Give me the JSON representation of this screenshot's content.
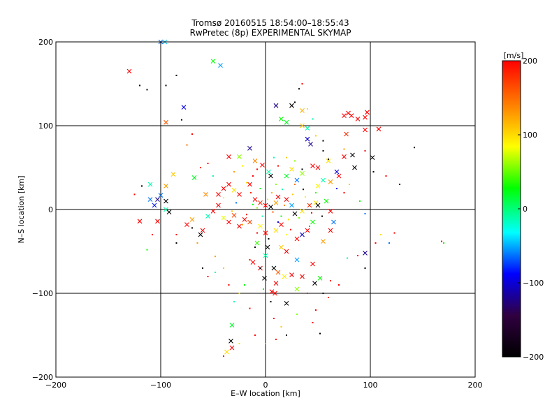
{
  "chart_data": {
    "type": "scatter",
    "title": "Tromsø 20160515 18:54:00–18:55:43",
    "subtitle": "RwPretec (8p) EXPERIMENTAL SKYMAP",
    "xlabel": "E–W location [km]",
    "ylabel": "N–S location [km]",
    "xlim": [
      -200,
      200
    ],
    "ylim": [
      -200,
      200
    ],
    "x_ticks": [
      -200,
      -100,
      0,
      100,
      200
    ],
    "y_ticks": [
      -200,
      -100,
      0,
      100,
      200
    ],
    "grid": true,
    "colorbar": {
      "label": "[m/s]",
      "range": [
        -200,
        200
      ],
      "ticks": [
        200,
        100,
        0,
        -100,
        -200
      ],
      "colors": [
        "#000000",
        "#300040",
        "#0000ff",
        "#00ffff",
        "#00ff00",
        "#ffff00",
        "#ff8000",
        "#ff0000"
      ]
    },
    "markers": {
      "cross": "meteor detection (x)",
      "dot": "meteor detection (point)"
    },
    "series": [
      {
        "marker": "cross",
        "points": [
          [
            -130,
            165,
            200
          ],
          [
            -96,
            200,
            -40
          ],
          [
            -50,
            177,
            30
          ],
          [
            -43,
            172,
            -50
          ],
          [
            -100,
            200,
            -60
          ],
          [
            -78,
            122,
            -90
          ],
          [
            10,
            124,
            -120
          ],
          [
            25,
            124,
            -200
          ],
          [
            35,
            118,
            120
          ],
          [
            -95,
            104,
            160
          ],
          [
            15,
            108,
            30
          ],
          [
            20,
            104,
            20
          ],
          [
            35,
            100,
            110
          ],
          [
            40,
            97,
            -10
          ],
          [
            40,
            84,
            -100
          ],
          [
            43,
            78,
            -120
          ],
          [
            75,
            112,
            200
          ],
          [
            79,
            115,
            200
          ],
          [
            82,
            112,
            200
          ],
          [
            88,
            108,
            200
          ],
          [
            97,
            116,
            200
          ],
          [
            95,
            110,
            200
          ],
          [
            95,
            95,
            200
          ],
          [
            108,
            96,
            200
          ],
          [
            77,
            90,
            180
          ],
          [
            -35,
            63,
            200
          ],
          [
            -25,
            63,
            60
          ],
          [
            -15,
            73,
            -120
          ],
          [
            -10,
            58,
            140
          ],
          [
            -3,
            53,
            200
          ],
          [
            3,
            45,
            -10
          ],
          [
            5,
            40,
            -200
          ],
          [
            25,
            48,
            100
          ],
          [
            20,
            40,
            20
          ],
          [
            30,
            35,
            -60
          ],
          [
            35,
            43,
            60
          ],
          [
            45,
            52,
            200
          ],
          [
            50,
            50,
            200
          ],
          [
            60,
            58,
            100
          ],
          [
            75,
            63,
            200
          ],
          [
            83,
            65,
            -200
          ],
          [
            102,
            62,
            -200
          ],
          [
            85,
            50,
            -200
          ],
          [
            68,
            45,
            -100
          ],
          [
            70,
            40,
            200
          ],
          [
            62,
            33,
            130
          ],
          [
            55,
            35,
            -10
          ],
          [
            50,
            28,
            90
          ],
          [
            -68,
            38,
            20
          ],
          [
            -88,
            42,
            110
          ],
          [
            -95,
            28,
            130
          ],
          [
            -110,
            30,
            -10
          ],
          [
            -110,
            12,
            -60
          ],
          [
            -106,
            5,
            -80
          ],
          [
            -100,
            17,
            -60
          ],
          [
            -95,
            10,
            -200
          ],
          [
            -103,
            12,
            -120
          ],
          [
            -95,
            0,
            -10
          ],
          [
            -92,
            -3,
            -200
          ],
          [
            -120,
            -14,
            200
          ],
          [
            -103,
            -14,
            200
          ],
          [
            -75,
            -18,
            200
          ],
          [
            -70,
            -12,
            130
          ],
          [
            -55,
            -8,
            -10
          ],
          [
            -60,
            -25,
            200
          ],
          [
            -62,
            -30,
            -200
          ],
          [
            -50,
            -2,
            200
          ],
          [
            -45,
            5,
            200
          ],
          [
            -40,
            -10,
            80
          ],
          [
            -35,
            -15,
            200
          ],
          [
            -25,
            -20,
            200
          ],
          [
            -20,
            -12,
            200
          ],
          [
            -30,
            -7,
            170
          ],
          [
            -57,
            18,
            140
          ],
          [
            -45,
            18,
            200
          ],
          [
            -40,
            25,
            200
          ],
          [
            -30,
            23,
            100
          ],
          [
            -25,
            18,
            200
          ],
          [
            -35,
            30,
            200
          ],
          [
            -15,
            30,
            200
          ],
          [
            -10,
            12,
            200
          ],
          [
            -5,
            8,
            180
          ],
          [
            0,
            5,
            200
          ],
          [
            5,
            3,
            -200
          ],
          [
            10,
            8,
            130
          ],
          [
            12,
            15,
            200
          ],
          [
            20,
            12,
            200
          ],
          [
            25,
            5,
            -50
          ],
          [
            28,
            -5,
            -200
          ],
          [
            35,
            -2,
            100
          ],
          [
            42,
            5,
            180
          ],
          [
            48,
            8,
            100
          ],
          [
            50,
            5,
            -200
          ],
          [
            58,
            10,
            30
          ],
          [
            62,
            -2,
            200
          ],
          [
            45,
            -15,
            30
          ],
          [
            40,
            -25,
            200
          ],
          [
            35,
            -30,
            -100
          ],
          [
            30,
            -35,
            200
          ],
          [
            15,
            -18,
            200
          ],
          [
            10,
            -25,
            100
          ],
          [
            0,
            -28,
            200
          ],
          [
            -5,
            -20,
            90
          ],
          [
            -15,
            -15,
            170
          ],
          [
            -8,
            -40,
            40
          ],
          [
            2,
            -45,
            -200
          ],
          [
            15,
            -45,
            110
          ],
          [
            20,
            -50,
            200
          ],
          [
            0,
            -55,
            -10
          ],
          [
            8,
            -70,
            -200
          ],
          [
            12,
            -75,
            160
          ],
          [
            18,
            -80,
            90
          ],
          [
            25,
            -78,
            200
          ],
          [
            10,
            -88,
            200
          ],
          [
            30,
            -95,
            60
          ],
          [
            35,
            -80,
            200
          ],
          [
            47,
            -88,
            -200
          ],
          [
            52,
            -82,
            30
          ],
          [
            30,
            -60,
            -50
          ],
          [
            45,
            -65,
            200
          ],
          [
            65,
            -15,
            -60
          ],
          [
            62,
            -25,
            200
          ],
          [
            55,
            -38,
            130
          ],
          [
            95,
            -52,
            -120
          ],
          [
            6,
            -98,
            200
          ],
          [
            9,
            -100,
            200
          ],
          [
            20,
            -112,
            -200
          ],
          [
            -32,
            -138,
            20
          ],
          [
            -33,
            -157,
            -200
          ],
          [
            -32,
            -165,
            200
          ],
          [
            -37,
            -170,
            100
          ],
          [
            -1,
            -82,
            -200
          ],
          [
            -5,
            -70,
            200
          ],
          [
            -12,
            -63,
            200
          ]
        ]
      },
      {
        "marker": "dot",
        "points": [
          [
            -120,
            148,
            -200
          ],
          [
            -113,
            143,
            -200
          ],
          [
            -95,
            148,
            -200
          ],
          [
            -85,
            160,
            -200
          ],
          [
            -80,
            107,
            -200
          ],
          [
            -75,
            77,
            150
          ],
          [
            -70,
            90,
            200
          ],
          [
            32,
            144,
            -200
          ],
          [
            35,
            150,
            200
          ],
          [
            28,
            128,
            -200
          ],
          [
            40,
            120,
            100
          ],
          [
            45,
            108,
            -10
          ],
          [
            48,
            88,
            110
          ],
          [
            55,
            82,
            -200
          ],
          [
            55,
            70,
            -200
          ],
          [
            75,
            72,
            130
          ],
          [
            95,
            70,
            200
          ],
          [
            142,
            74,
            -200
          ],
          [
            103,
            45,
            -200
          ],
          [
            115,
            40,
            200
          ],
          [
            128,
            30,
            -200
          ],
          [
            -62,
            50,
            200
          ],
          [
            -50,
            40,
            -10
          ],
          [
            -55,
            55,
            200
          ],
          [
            -30,
            45,
            130
          ],
          [
            -22,
            52,
            90
          ],
          [
            -12,
            40,
            200
          ],
          [
            -8,
            48,
            200
          ],
          [
            8,
            62,
            -10
          ],
          [
            12,
            52,
            200
          ],
          [
            20,
            62,
            110
          ],
          [
            28,
            58,
            60
          ],
          [
            35,
            48,
            -200
          ],
          [
            60,
            60,
            -200
          ],
          [
            80,
            30,
            110
          ],
          [
            68,
            25,
            -80
          ],
          [
            75,
            20,
            200
          ],
          [
            90,
            10,
            30
          ],
          [
            95,
            -5,
            -60
          ],
          [
            110,
            -30,
            100
          ],
          [
            118,
            -40,
            -60
          ],
          [
            123,
            -28,
            200
          ],
          [
            168,
            -38,
            200
          ],
          [
            170,
            -40,
            30
          ],
          [
            -125,
            18,
            200
          ],
          [
            -118,
            28,
            -200
          ],
          [
            -113,
            -48,
            30
          ],
          [
            -108,
            -30,
            200
          ],
          [
            -85,
            -30,
            200
          ],
          [
            -70,
            -22,
            -200
          ],
          [
            -65,
            -40,
            130
          ],
          [
            -60,
            -70,
            -200
          ],
          [
            -55,
            -80,
            200
          ],
          [
            -48,
            -75,
            -10
          ],
          [
            -40,
            -70,
            110
          ],
          [
            -35,
            -90,
            200
          ],
          [
            -30,
            -110,
            -10
          ],
          [
            -25,
            -100,
            100
          ],
          [
            -20,
            -90,
            30
          ],
          [
            -15,
            -60,
            200
          ],
          [
            -5,
            -70,
            -200
          ],
          [
            -2,
            -95,
            30
          ],
          [
            5,
            -110,
            -200
          ],
          [
            8,
            -130,
            200
          ],
          [
            15,
            -140,
            110
          ],
          [
            20,
            -150,
            -200
          ],
          [
            30,
            -125,
            60
          ],
          [
            40,
            -100,
            200
          ],
          [
            48,
            -120,
            200
          ],
          [
            55,
            -100,
            -200
          ],
          [
            60,
            -105,
            200
          ],
          [
            62,
            -85,
            200
          ],
          [
            70,
            -90,
            200
          ],
          [
            78,
            -58,
            -10
          ],
          [
            88,
            -55,
            200
          ],
          [
            95,
            -70,
            -200
          ],
          [
            105,
            -40,
            200
          ],
          [
            -40,
            -175,
            200
          ],
          [
            -25,
            -160,
            100
          ],
          [
            -10,
            -150,
            200
          ],
          [
            0,
            -160,
            130
          ],
          [
            10,
            -155,
            200
          ],
          [
            45,
            -135,
            200
          ],
          [
            52,
            -148,
            -200
          ],
          [
            -85,
            -40,
            -200
          ],
          [
            -48,
            -56,
            130
          ],
          [
            -15,
            -118,
            200
          ],
          [
            -10,
            -45,
            -200
          ],
          [
            3,
            -35,
            -200
          ],
          [
            15,
            -8,
            30
          ],
          [
            22,
            -12,
            100
          ],
          [
            -8,
            2,
            60
          ],
          [
            -3,
            -8,
            -10
          ],
          [
            7,
            -3,
            160
          ],
          [
            2,
            12,
            100
          ],
          [
            -12,
            6,
            30
          ],
          [
            18,
            5,
            140
          ],
          [
            12,
            -15,
            -100
          ],
          [
            -18,
            -6,
            200
          ],
          [
            26,
            18,
            110
          ],
          [
            32,
            -10,
            60
          ],
          [
            -28,
            8,
            -60
          ],
          [
            38,
            15,
            90
          ],
          [
            -22,
            -18,
            130
          ],
          [
            44,
            -4,
            200
          ],
          [
            -5,
            25,
            20
          ],
          [
            6,
            20,
            120
          ],
          [
            16,
            24,
            -10
          ],
          [
            -14,
            20,
            180
          ],
          [
            24,
            -24,
            200
          ],
          [
            36,
            24,
            -200
          ],
          [
            -32,
            -2,
            110
          ],
          [
            48,
            20,
            40
          ],
          [
            54,
            -8,
            -200
          ],
          [
            -40,
            14,
            80
          ],
          [
            10,
            30,
            60
          ],
          [
            -8,
            -28,
            200
          ],
          [
            28,
            30,
            150
          ],
          [
            20,
            -30,
            90
          ],
          [
            42,
            -20,
            -50
          ],
          [
            -18,
            32,
            100
          ]
        ]
      }
    ]
  }
}
